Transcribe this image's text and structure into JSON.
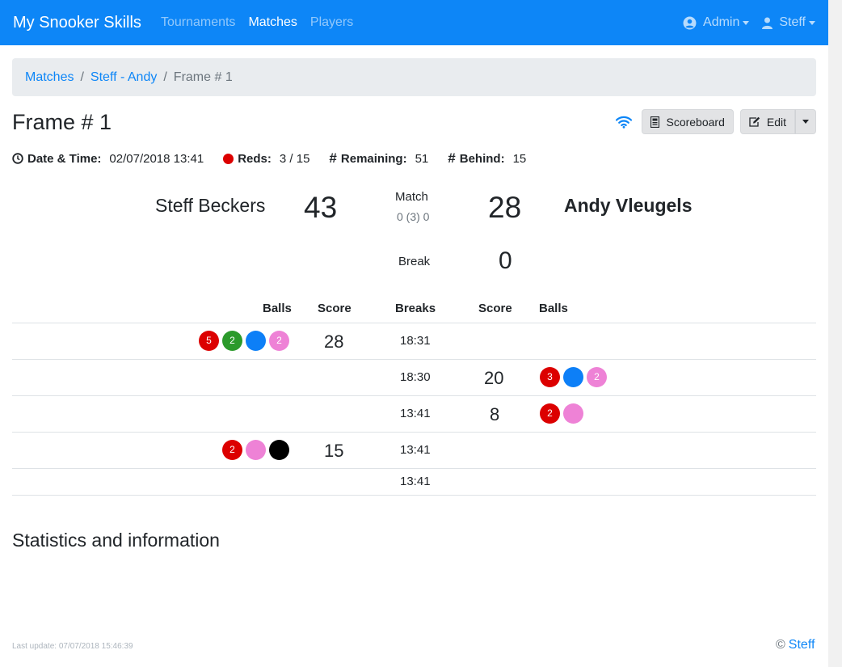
{
  "navbar": {
    "brand": "My Snooker Skills",
    "links": [
      "Tournaments",
      "Matches",
      "Players"
    ],
    "admin_label": "Admin",
    "user_label": "Steff"
  },
  "breadcrumb": {
    "items": [
      "Matches",
      "Steff - Andy"
    ],
    "active": "Frame # 1"
  },
  "header": {
    "title": "Frame # 1",
    "scoreboard_label": "Scoreboard",
    "edit_label": "Edit"
  },
  "info": {
    "datetime_label": "Date & Time:",
    "datetime_value": "02/07/2018 13:41",
    "reds_label": "Reds:",
    "reds_value": "3 / 15",
    "remaining_label": "Remaining:",
    "remaining_value": "51",
    "behind_label": "Behind:",
    "behind_value": "15"
  },
  "scoreboard": {
    "player1": "Steff Beckers",
    "player1_score": "43",
    "player2": "Andy Vleugels",
    "player2_score": "28",
    "match_label": "Match",
    "match_value": "0 (3) 0",
    "break_label": "Break",
    "break_value": "0"
  },
  "table": {
    "headers": [
      "Balls",
      "Score",
      "Breaks",
      "Score",
      "Balls"
    ],
    "rows": [
      {
        "left_balls": [
          {
            "color": "red",
            "label": "5"
          },
          {
            "color": "green",
            "label": "2"
          },
          {
            "color": "blue",
            "label": ""
          },
          {
            "color": "pink",
            "label": "2"
          }
        ],
        "left_score": "28",
        "time": "18:31",
        "right_score": "",
        "right_balls": []
      },
      {
        "left_balls": [],
        "left_score": "",
        "time": "18:30",
        "right_score": "20",
        "right_balls": [
          {
            "color": "red",
            "label": "3"
          },
          {
            "color": "blue",
            "label": ""
          },
          {
            "color": "pink",
            "label": "2"
          }
        ]
      },
      {
        "left_balls": [],
        "left_score": "",
        "time": "13:41",
        "right_score": "8",
        "right_balls": [
          {
            "color": "red",
            "label": "2"
          },
          {
            "color": "pink",
            "label": ""
          }
        ]
      },
      {
        "left_balls": [
          {
            "color": "red",
            "label": "2"
          },
          {
            "color": "pink",
            "label": ""
          },
          {
            "color": "black",
            "label": ""
          }
        ],
        "left_score": "15",
        "time": "13:41",
        "right_score": "",
        "right_balls": []
      },
      {
        "left_balls": [],
        "left_score": "",
        "time": "13:41",
        "right_score": "",
        "right_balls": []
      }
    ]
  },
  "stats": {
    "title": "Statistics and information"
  },
  "footer": {
    "last_update": "Last update: 07/07/2018 15:46:39",
    "copyright_symbol": "©",
    "author": "Steff"
  },
  "colors": {
    "primary": "#0d86f7",
    "red": "#dc0000",
    "green": "#2b9a2b",
    "blue": "#0d7ff7",
    "pink": "#ee82d6",
    "black": "#000000"
  }
}
